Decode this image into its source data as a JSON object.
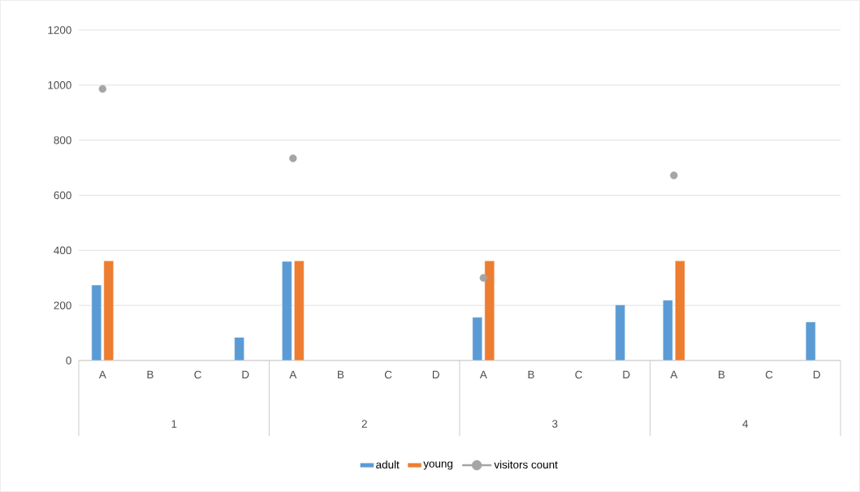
{
  "chart_data": {
    "type": "bar",
    "categories": [
      "A",
      "B",
      "C",
      "D",
      "A",
      "B",
      "C",
      "D",
      "A",
      "B",
      "C",
      "D",
      "A",
      "B",
      "C",
      "D"
    ],
    "series": [
      {
        "name": "adult",
        "color": "#5b9bd5",
        "values": [
          274,
          null,
          null,
          84,
          360,
          null,
          null,
          null,
          157,
          null,
          null,
          202,
          219,
          null,
          null,
          140
        ]
      },
      {
        "name": "young",
        "color": "#ed7d31",
        "values": [
          362,
          null,
          null,
          null,
          362,
          null,
          null,
          null,
          362,
          null,
          null,
          null,
          362,
          null,
          null,
          null
        ]
      },
      {
        "name": "visitors count",
        "type": "scatter",
        "color": "#a5a5a5",
        "marker": "circle",
        "values": [
          986,
          null,
          null,
          null,
          734,
          null,
          null,
          null,
          300,
          null,
          null,
          null,
          672,
          null,
          null,
          null
        ]
      }
    ],
    "ylim": [
      0,
      1200
    ],
    "yticks": [
      0,
      200,
      400,
      600,
      800,
      1000,
      1200
    ],
    "grid": "y",
    "legend": "bottom",
    "annotations": [
      "1",
      "2",
      "3",
      "4"
    ]
  }
}
